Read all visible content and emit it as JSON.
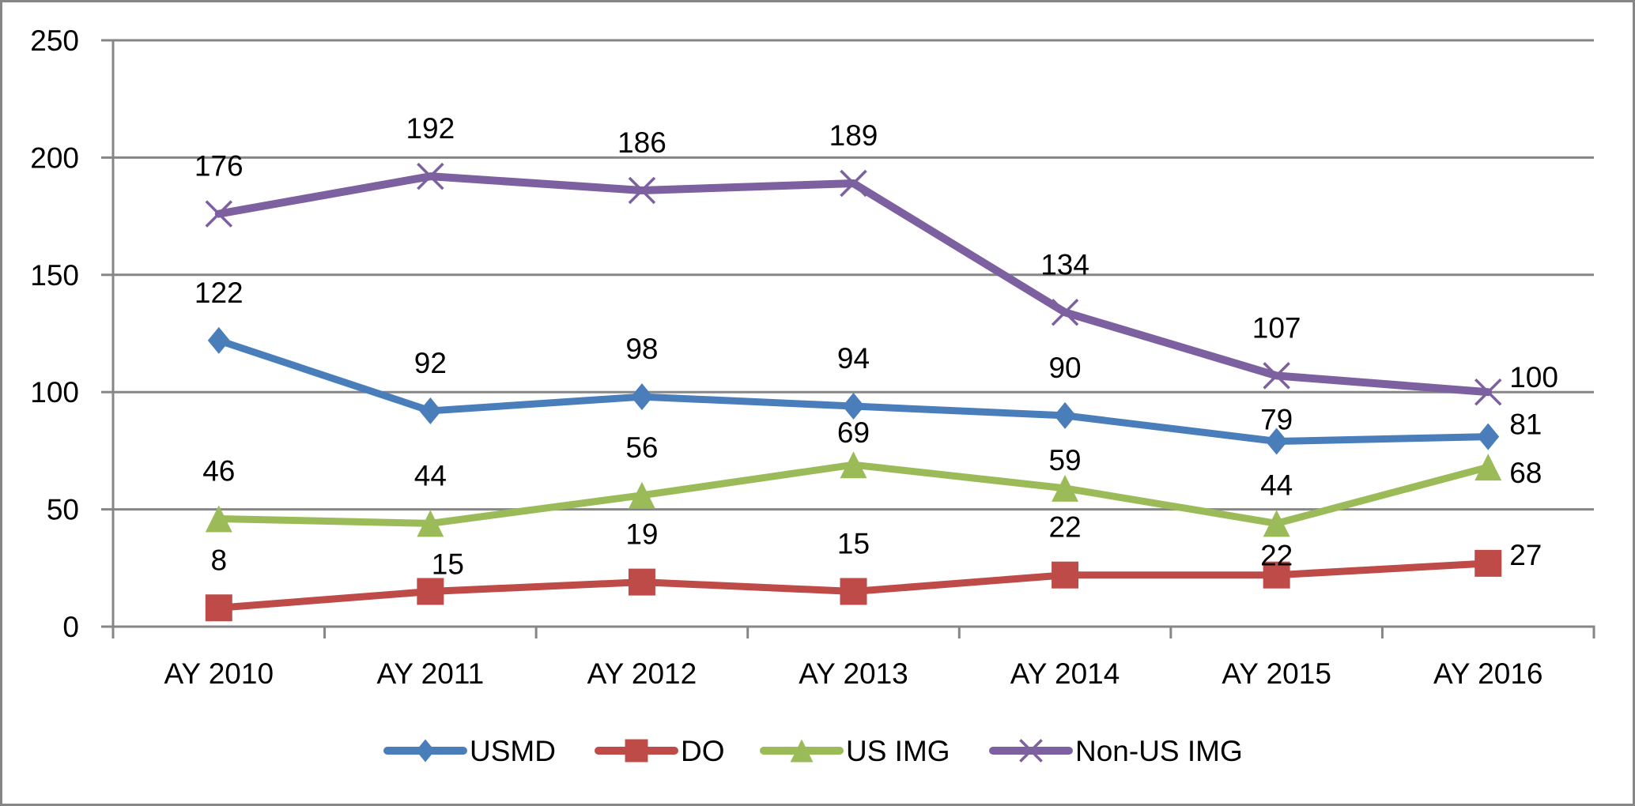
{
  "chart_data": {
    "type": "line",
    "title": "",
    "xlabel": "",
    "ylabel": "",
    "categories": [
      "AY 2010",
      "AY 2011",
      "AY 2012",
      "AY 2013",
      "AY 2014",
      "AY 2015",
      "AY 2016"
    ],
    "ylim": [
      0,
      250
    ],
    "yticks": [
      "0",
      "50",
      "100",
      "150",
      "200",
      "250"
    ],
    "grid": true,
    "legend_position": "bottom",
    "series": [
      {
        "name": "USMD",
        "color": "#4a7ebb",
        "marker": "diamond",
        "values": [
          122,
          92,
          98,
          94,
          90,
          79,
          81
        ]
      },
      {
        "name": "DO",
        "color": "#be4b48",
        "marker": "square",
        "values": [
          8,
          15,
          19,
          15,
          22,
          22,
          27
        ]
      },
      {
        "name": "US IMG",
        "color": "#9bbb59",
        "marker": "triangle",
        "values": [
          46,
          44,
          56,
          69,
          59,
          44,
          68
        ]
      },
      {
        "name": "Non-US IMG",
        "color": "#7d60a0",
        "marker": "x",
        "values": [
          176,
          192,
          186,
          189,
          134,
          107,
          100
        ]
      }
    ]
  }
}
